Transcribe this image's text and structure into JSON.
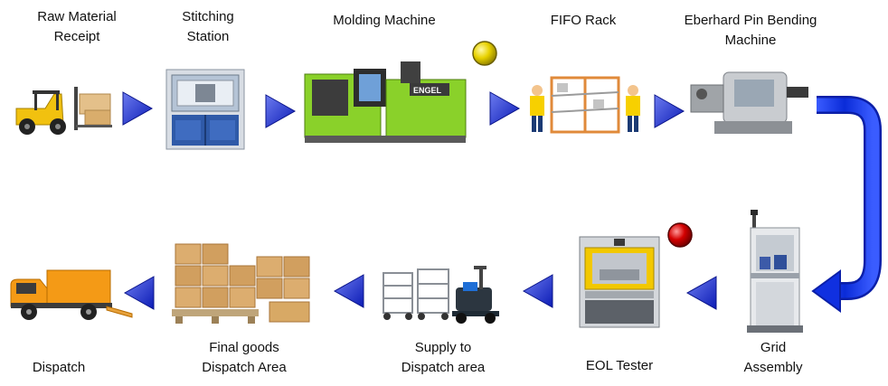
{
  "steps": [
    {
      "line1": "Raw Material",
      "line2": "Receipt",
      "icon": "forklift-icon"
    },
    {
      "line1": "Stitching",
      "line2": "Station",
      "icon": "stitching-station-icon"
    },
    {
      "line1": "Molding Machine",
      "icon": "molding-machine-icon"
    },
    {
      "line1": "FIFO Rack",
      "icon": "fifo-rack-icon"
    },
    {
      "line1": "Eberhard Pin Bending",
      "line2": "Machine",
      "icon": "pin-bending-machine-icon"
    },
    {
      "line1": "Grid",
      "line2": "Assembly",
      "icon": "grid-assembly-station-icon"
    },
    {
      "line1": "EOL Tester",
      "icon": "eol-tester-icon"
    },
    {
      "line1": "Supply to",
      "line2": "Dispatch area",
      "icon": "trolley-and-tugger-icon"
    },
    {
      "line1": "Final goods",
      "line2": "Dispatch Area",
      "icon": "stacked-boxes-pallet-icon"
    },
    {
      "line1": "Dispatch",
      "icon": "delivery-truck-icon"
    }
  ],
  "status_lights": [
    {
      "station": "Molding Machine",
      "color": "#e8d200",
      "icon": "yellow-status-light-icon"
    },
    {
      "station": "EOL Tester",
      "color": "#d40000",
      "icon": "red-status-light-icon"
    }
  ],
  "machine_brand": "ENGEL",
  "colors": {
    "arrow": "#1a2fd0",
    "connector": "#1030e0",
    "machine_green": "#8ad12a",
    "crate": "#d7a768"
  }
}
